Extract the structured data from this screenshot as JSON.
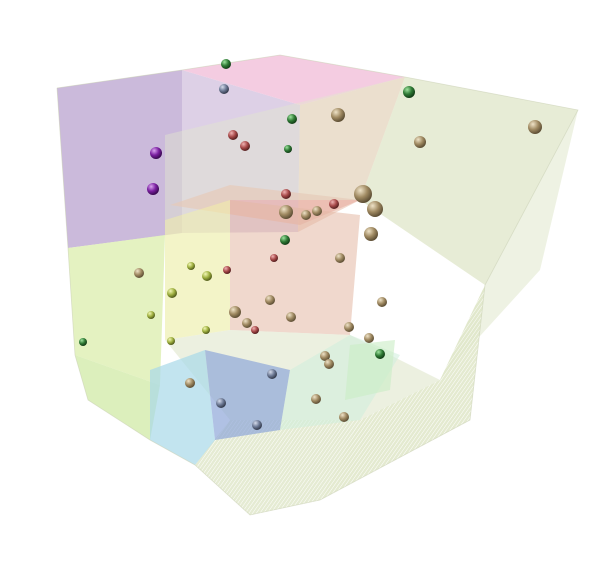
{
  "scene": {
    "background": "#ffffff",
    "palette": {
      "violet": "#b9a3cf",
      "pink": "#f2c3dc",
      "salmon": "#e9b3a8",
      "lime": "#dff0b6",
      "sage": "#dfe6c8",
      "sky": "#a8d8e8",
      "blue": "#8ea6d8",
      "mint": "#cfeedd"
    },
    "sphere_colors": {
      "tan": "#a08a62",
      "darkgreen": "#2f7a35",
      "purple": "#7a1fa0",
      "red": "#a84a4a",
      "olive": "#9fb040",
      "slate": "#6d7a95"
    }
  }
}
